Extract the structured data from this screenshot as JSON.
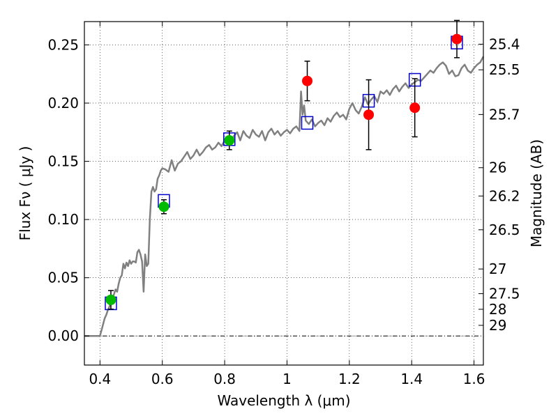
{
  "chart_data": {
    "type": "scatter",
    "xlabel": "Wavelength  λ (μm)",
    "ylabel_left": "Flux  Fν  ( μJy )",
    "ylabel_right": "Magnitude (AB)",
    "xlim": [
      0.35,
      1.63
    ],
    "ylim": [
      -0.025,
      0.27
    ],
    "xticks": [
      0.4,
      0.6,
      0.8,
      1.0,
      1.2,
      1.4,
      1.6
    ],
    "xtick_labels": [
      "0.4",
      "0.6",
      "0.8",
      "1",
      "1.2",
      "1.4",
      "1.6"
    ],
    "yticks": [
      0.0,
      0.05,
      0.1,
      0.15,
      0.2,
      0.25
    ],
    "ytick_labels": [
      "0.00",
      "0.05",
      "0.10",
      "0.15",
      "0.20",
      "0.25"
    ],
    "right_ticks": [
      {
        "label": "25.4",
        "flux": 0.2506
      },
      {
        "label": "25.5",
        "flux": 0.2286
      },
      {
        "label": "25.7",
        "flux": 0.1902
      },
      {
        "label": "26",
        "flux": 0.1445
      },
      {
        "label": "26.2",
        "flux": 0.1202
      },
      {
        "label": "26.5",
        "flux": 0.0912
      },
      {
        "label": "27",
        "flux": 0.0575
      },
      {
        "label": "27.5",
        "flux": 0.0363
      },
      {
        "label": "28",
        "flux": 0.0229
      },
      {
        "label": "29",
        "flux": 0.0091
      }
    ],
    "grid": true,
    "series": [
      {
        "kind": "line",
        "color": "#808080",
        "x": [
          0.35,
          0.4,
          0.405,
          0.41,
          0.415,
          0.42,
          0.425,
          0.43,
          0.435,
          0.44,
          0.445,
          0.45,
          0.455,
          0.46,
          0.465,
          0.47,
          0.475,
          0.48,
          0.485,
          0.49,
          0.495,
          0.5,
          0.505,
          0.51,
          0.515,
          0.52,
          0.525,
          0.53,
          0.535,
          0.54,
          0.545,
          0.55,
          0.555,
          0.56,
          0.565,
          0.57,
          0.575,
          0.58,
          0.585,
          0.59,
          0.595,
          0.6,
          0.61,
          0.62,
          0.63,
          0.64,
          0.65,
          0.66,
          0.67,
          0.68,
          0.69,
          0.7,
          0.71,
          0.72,
          0.73,
          0.74,
          0.75,
          0.76,
          0.77,
          0.78,
          0.79,
          0.8,
          0.81,
          0.82,
          0.83,
          0.84,
          0.85,
          0.86,
          0.87,
          0.88,
          0.89,
          0.9,
          0.91,
          0.92,
          0.93,
          0.94,
          0.95,
          0.96,
          0.97,
          0.98,
          0.99,
          1.0,
          1.01,
          1.02,
          1.03,
          1.04,
          1.045,
          1.05,
          1.055,
          1.06,
          1.07,
          1.08,
          1.09,
          1.1,
          1.11,
          1.12,
          1.13,
          1.14,
          1.15,
          1.16,
          1.17,
          1.18,
          1.19,
          1.2,
          1.21,
          1.22,
          1.23,
          1.24,
          1.25,
          1.26,
          1.27,
          1.28,
          1.29,
          1.3,
          1.31,
          1.32,
          1.33,
          1.34,
          1.35,
          1.36,
          1.37,
          1.38,
          1.39,
          1.4,
          1.41,
          1.42,
          1.43,
          1.44,
          1.45,
          1.46,
          1.47,
          1.48,
          1.49,
          1.5,
          1.51,
          1.52,
          1.53,
          1.54,
          1.55,
          1.56,
          1.57,
          1.58,
          1.59,
          1.6,
          1.61,
          1.62,
          1.63
        ],
        "y": [
          0.0,
          0.0,
          0.005,
          0.01,
          0.015,
          0.018,
          0.022,
          0.025,
          0.03,
          0.032,
          0.036,
          0.04,
          0.038,
          0.045,
          0.05,
          0.052,
          0.062,
          0.058,
          0.063,
          0.06,
          0.065,
          0.062,
          0.064,
          0.064,
          0.063,
          0.072,
          0.074,
          0.07,
          0.064,
          0.038,
          0.07,
          0.06,
          0.062,
          0.1,
          0.124,
          0.128,
          0.124,
          0.126,
          0.135,
          0.138,
          0.142,
          0.144,
          0.143,
          0.141,
          0.151,
          0.142,
          0.148,
          0.15,
          0.154,
          0.158,
          0.152,
          0.155,
          0.16,
          0.155,
          0.158,
          0.162,
          0.164,
          0.16,
          0.162,
          0.166,
          0.163,
          0.168,
          0.171,
          0.165,
          0.172,
          0.175,
          0.168,
          0.176,
          0.172,
          0.17,
          0.177,
          0.173,
          0.171,
          0.176,
          0.168,
          0.175,
          0.178,
          0.173,
          0.176,
          0.172,
          0.175,
          0.177,
          0.174,
          0.178,
          0.18,
          0.176,
          0.21,
          0.19,
          0.198,
          0.185,
          0.182,
          0.186,
          0.18,
          0.183,
          0.185,
          0.181,
          0.187,
          0.184,
          0.189,
          0.192,
          0.188,
          0.19,
          0.186,
          0.195,
          0.2,
          0.194,
          0.191,
          0.197,
          0.205,
          0.199,
          0.203,
          0.206,
          0.201,
          0.21,
          0.208,
          0.211,
          0.207,
          0.212,
          0.215,
          0.21,
          0.214,
          0.217,
          0.213,
          0.216,
          0.218,
          0.22,
          0.219,
          0.222,
          0.225,
          0.228,
          0.226,
          0.23,
          0.233,
          0.235,
          0.232,
          0.225,
          0.228,
          0.223,
          0.224,
          0.23,
          0.233,
          0.228,
          0.226,
          0.23,
          0.233,
          0.235,
          0.24
        ]
      },
      {
        "kind": "squares",
        "color": "#0000cc",
        "x": [
          0.435,
          0.605,
          0.815,
          1.065,
          1.262,
          1.41,
          1.545
        ],
        "y": [
          0.028,
          0.116,
          0.169,
          0.183,
          0.202,
          0.22,
          0.252
        ]
      },
      {
        "kind": "points",
        "color": "#00bb00",
        "x": [
          0.435,
          0.605,
          0.815
        ],
        "y": [
          0.031,
          0.111,
          0.168
        ],
        "yerr": [
          0.008,
          0.006,
          0.008
        ]
      },
      {
        "kind": "points",
        "color": "#ff0000",
        "x": [
          1.065,
          1.262,
          1.41,
          1.545
        ],
        "y": [
          0.219,
          0.19,
          0.196,
          0.255
        ],
        "yerr": [
          0.017,
          0.03,
          0.025,
          0.016
        ]
      }
    ]
  }
}
